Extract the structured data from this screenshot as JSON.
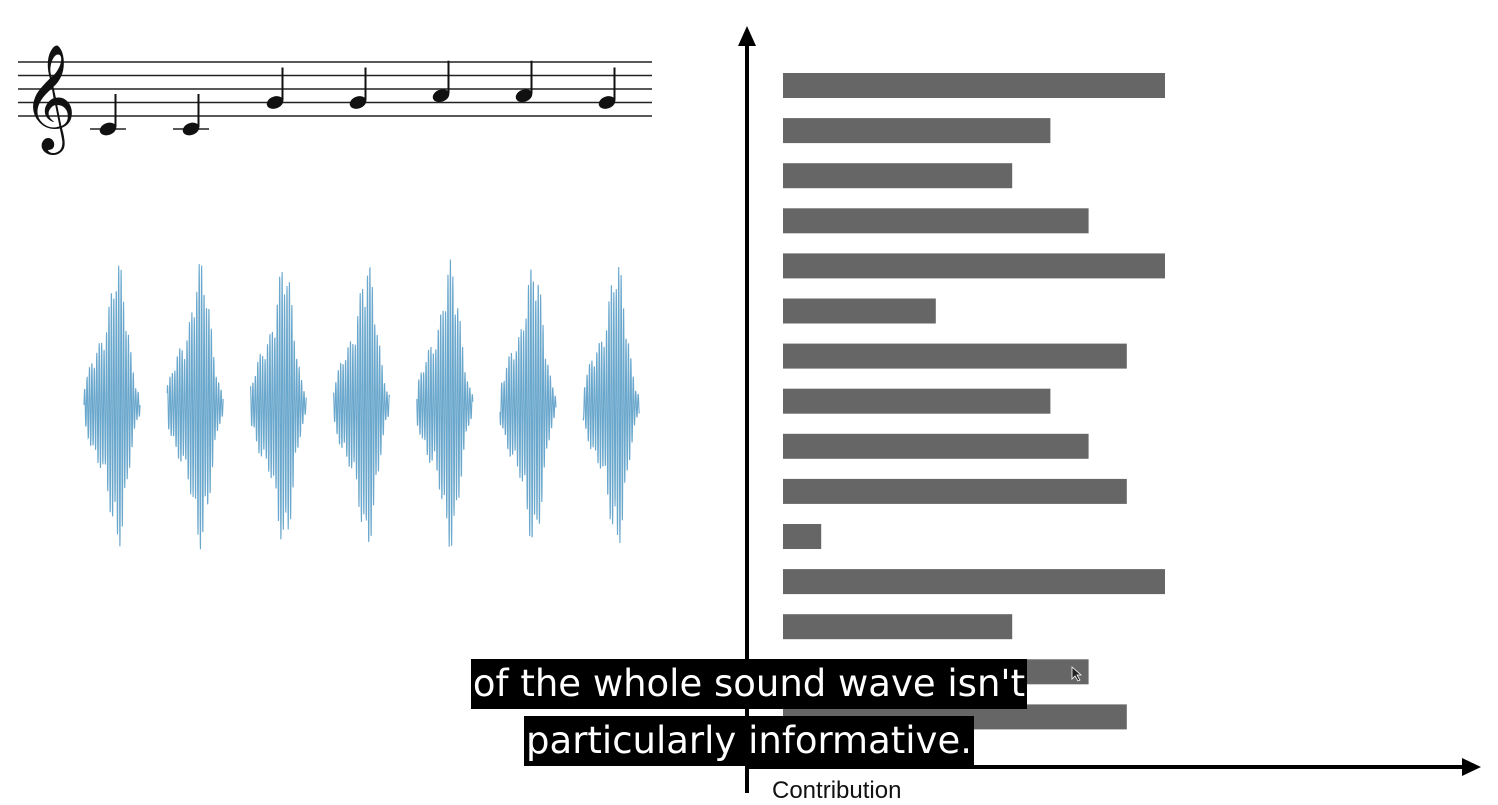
{
  "staff": {
    "clef_icon": "treble-clef-icon",
    "note_icon": "quarter-note-icon",
    "notes": [
      "C4",
      "C4",
      "G4",
      "G4",
      "A4",
      "A4",
      "G4"
    ]
  },
  "waveform": {
    "color": "#6aa7cc",
    "segment_count": 7
  },
  "chart_data": {
    "type": "bar",
    "orientation": "horizontal",
    "xlabel": "Contribution",
    "ylabel": "",
    "xlim": [
      0,
      10
    ],
    "values": [
      10,
      7,
      6,
      8,
      10,
      4,
      9,
      7,
      8,
      9,
      1,
      10,
      6,
      8,
      9
    ],
    "bar_color": "#666666",
    "axis_color": "#000000",
    "grid": false
  },
  "captions": {
    "line1": "of the whole sound wave isn't",
    "line2": "particularly informative."
  }
}
